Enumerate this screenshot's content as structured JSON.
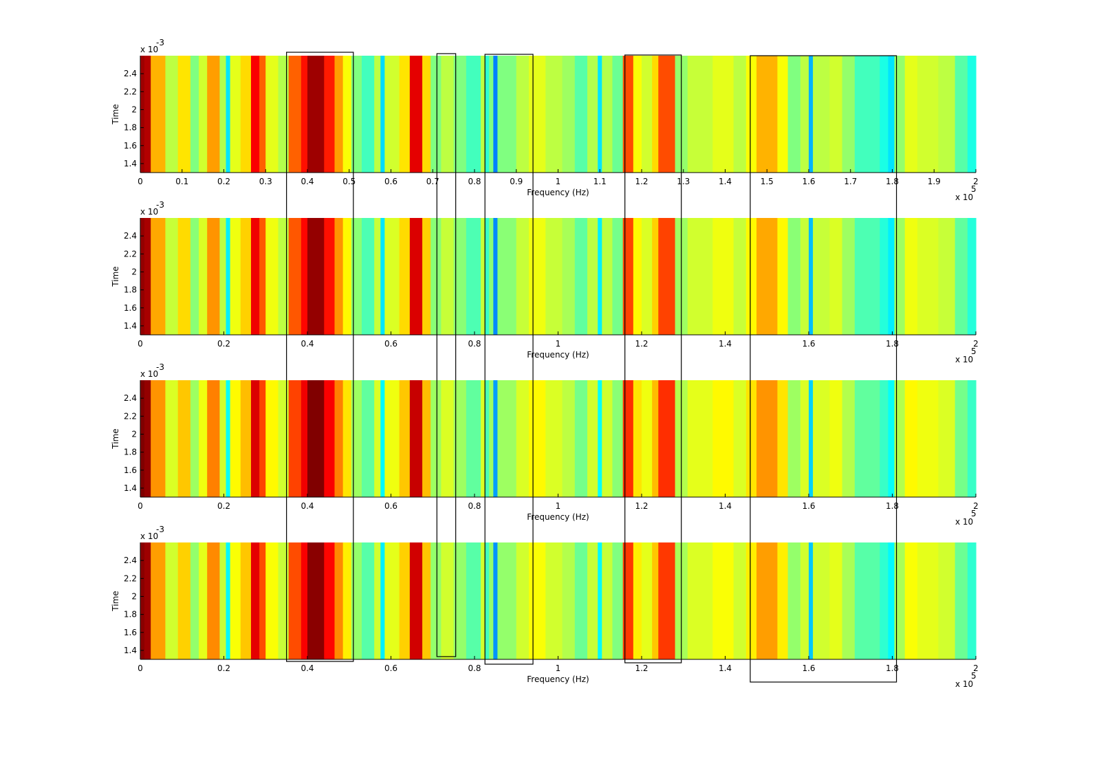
{
  "colors": {
    "background": "#ffffff",
    "axis": "#000000",
    "highlight_box": "#000000"
  },
  "chart_data": {
    "type": "heatmap",
    "colormap": "jet",
    "grid": false,
    "x_range": [
      0,
      200000
    ],
    "y_range": [
      0.0013,
      0.0026
    ],
    "y_ticks": [
      1.4,
      1.6,
      1.8,
      2,
      2.2,
      2.4
    ],
    "y_exponent_label": "x 10",
    "y_exponent": "-3",
    "x_exponent_label": "x 10",
    "x_exponent": "5",
    "xlabel": "Frequency (Hz)",
    "ylabel": "Time",
    "highlight_ranges_hz": [
      [
        35000,
        51000
      ],
      [
        71000,
        75500
      ],
      [
        82500,
        94000
      ],
      [
        116000,
        129500
      ],
      [
        146000,
        181000
      ]
    ],
    "band_color_levels": [
      {
        "f": 0,
        "level": 0.97
      },
      {
        "f": 1000,
        "level": 0.95
      },
      {
        "f": 2500,
        "level": 0.7
      },
      {
        "f": 6000,
        "level": 0.56
      },
      {
        "f": 9000,
        "level": 0.65
      },
      {
        "f": 12000,
        "level": 0.5
      },
      {
        "f": 14000,
        "level": 0.58
      },
      {
        "f": 16000,
        "level": 0.72
      },
      {
        "f": 19000,
        "level": 0.55
      },
      {
        "f": 20500,
        "level": 0.35
      },
      {
        "f": 21500,
        "level": 0.6
      },
      {
        "f": 24000,
        "level": 0.66
      },
      {
        "f": 26500,
        "level": 0.88
      },
      {
        "f": 28500,
        "level": 0.78
      },
      {
        "f": 30000,
        "level": 0.6
      },
      {
        "f": 33000,
        "level": 0.55
      },
      {
        "f": 35500,
        "level": 0.78
      },
      {
        "f": 38500,
        "level": 0.86
      },
      {
        "f": 40000,
        "level": 0.97
      },
      {
        "f": 44000,
        "level": 0.85
      },
      {
        "f": 46500,
        "level": 0.72
      },
      {
        "f": 48500,
        "level": 0.62
      },
      {
        "f": 50500,
        "level": 0.5
      },
      {
        "f": 53000,
        "level": 0.44
      },
      {
        "f": 56000,
        "level": 0.56
      },
      {
        "f": 57500,
        "level": 0.34
      },
      {
        "f": 58500,
        "level": 0.58
      },
      {
        "f": 62000,
        "level": 0.65
      },
      {
        "f": 64500,
        "level": 0.9
      },
      {
        "f": 67500,
        "level": 0.66
      },
      {
        "f": 69500,
        "level": 0.5
      },
      {
        "f": 72000,
        "level": 0.56
      },
      {
        "f": 75000,
        "level": 0.5
      },
      {
        "f": 78000,
        "level": 0.44
      },
      {
        "f": 81500,
        "level": 0.56
      },
      {
        "f": 82500,
        "level": 0.42
      },
      {
        "f": 83500,
        "level": 0.5
      },
      {
        "f": 84500,
        "level": 0.25
      },
      {
        "f": 85500,
        "level": 0.5
      },
      {
        "f": 90000,
        "level": 0.56
      },
      {
        "f": 93000,
        "level": 0.6
      },
      {
        "f": 97000,
        "level": 0.56
      },
      {
        "f": 101000,
        "level": 0.53
      },
      {
        "f": 104000,
        "level": 0.46
      },
      {
        "f": 107000,
        "level": 0.55
      },
      {
        "f": 109500,
        "level": 0.35
      },
      {
        "f": 110500,
        "level": 0.55
      },
      {
        "f": 113000,
        "level": 0.48
      },
      {
        "f": 115500,
        "level": 0.8
      },
      {
        "f": 118000,
        "level": 0.62
      },
      {
        "f": 120000,
        "level": 0.58
      },
      {
        "f": 122500,
        "level": 0.66
      },
      {
        "f": 124000,
        "level": 0.8
      },
      {
        "f": 128000,
        "level": 0.52
      },
      {
        "f": 131000,
        "level": 0.57
      },
      {
        "f": 137000,
        "level": 0.6
      },
      {
        "f": 142000,
        "level": 0.56
      },
      {
        "f": 145000,
        "level": 0.62
      },
      {
        "f": 147500,
        "level": 0.7
      },
      {
        "f": 152500,
        "level": 0.62
      },
      {
        "f": 155000,
        "level": 0.5
      },
      {
        "f": 158000,
        "level": 0.56
      },
      {
        "f": 160000,
        "level": 0.3
      },
      {
        "f": 161000,
        "level": 0.56
      },
      {
        "f": 165000,
        "level": 0.58
      },
      {
        "f": 168000,
        "level": 0.52
      },
      {
        "f": 171000,
        "level": 0.44
      },
      {
        "f": 177000,
        "level": 0.4
      },
      {
        "f": 179000,
        "level": 0.35
      },
      {
        "f": 180500,
        "level": 0.52
      },
      {
        "f": 183000,
        "level": 0.6
      },
      {
        "f": 186000,
        "level": 0.58
      },
      {
        "f": 191000,
        "level": 0.56
      },
      {
        "f": 195000,
        "level": 0.46
      },
      {
        "f": 198000,
        "level": 0.4
      }
    ],
    "panels": [
      {
        "name": "panel-1",
        "x_ticks": [
          0,
          0.1,
          0.2,
          0.3,
          0.4,
          0.5,
          0.6,
          0.7,
          0.8,
          0.9,
          1,
          1.1,
          1.2,
          1.3,
          1.4,
          1.5,
          1.6,
          1.7,
          1.8,
          1.9,
          2
        ],
        "level_offset": 0.0
      },
      {
        "name": "panel-2",
        "x_ticks": [
          0,
          0.2,
          0.4,
          0.6,
          0.8,
          1,
          1.2,
          1.4,
          1.6,
          1.8,
          2
        ],
        "level_offset": 0.01
      },
      {
        "name": "panel-3",
        "x_ticks": [
          0,
          0.2,
          0.4,
          0.6,
          0.8,
          1,
          1.2,
          1.4,
          1.6,
          1.8,
          2
        ],
        "level_offset": 0.03
      },
      {
        "name": "panel-4",
        "x_ticks": [
          0,
          0.2,
          0.4,
          0.6,
          0.8,
          1,
          1.2,
          1.4,
          1.6,
          1.8,
          2
        ],
        "level_offset": 0.02
      }
    ]
  }
}
